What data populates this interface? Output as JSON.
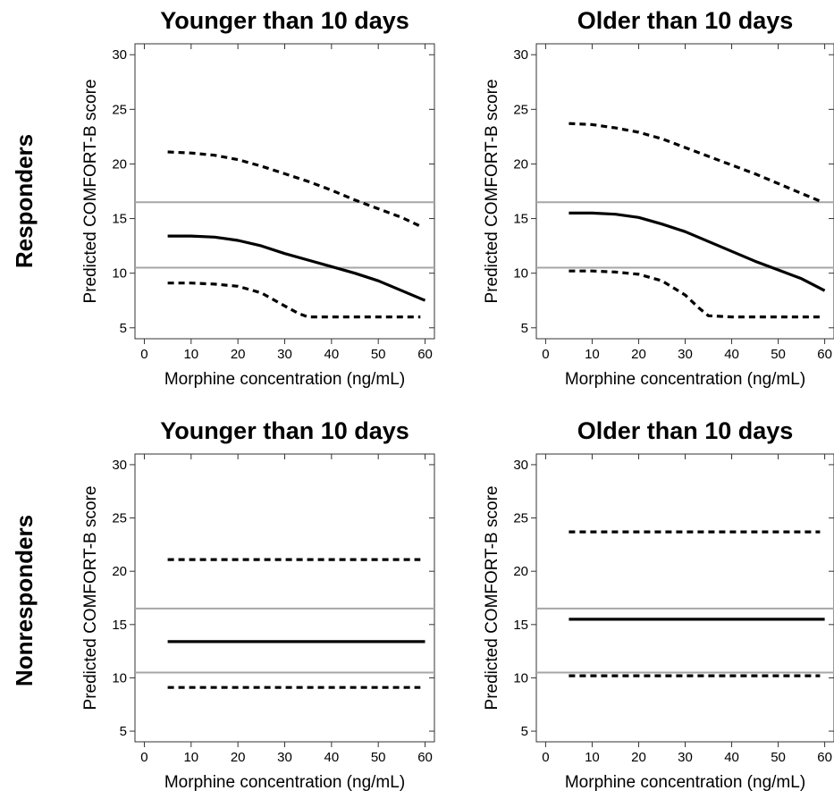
{
  "row_labels": [
    "Responders",
    "Nonresponders"
  ],
  "colors": {
    "curve": "#000000",
    "reference": "#a6a6a6",
    "frame": "#333333"
  },
  "chart_data": [
    {
      "type": "line",
      "title": "Younger than 10 days",
      "row": "Responders",
      "xlabel": "Morphine concentration (ng/mL)",
      "ylabel": "Predicted COMFORT-B score",
      "xlim": [
        -2,
        62
      ],
      "ylim": [
        4,
        31
      ],
      "xticks": [
        0,
        10,
        20,
        30,
        40,
        50,
        60
      ],
      "yticks": [
        5,
        10,
        15,
        20,
        25,
        30
      ],
      "reference_lines": [
        10.5,
        16.5
      ],
      "series": [
        {
          "role": "estimate",
          "style": "solid",
          "x": [
            5,
            10,
            15,
            20,
            25,
            30,
            35,
            40,
            45,
            50,
            55,
            60
          ],
          "y": [
            13.4,
            13.4,
            13.3,
            13.0,
            12.5,
            11.8,
            11.2,
            10.6,
            10.0,
            9.3,
            8.4,
            7.5
          ]
        },
        {
          "role": "upper",
          "style": "dashed",
          "x": [
            5,
            10,
            15,
            20,
            25,
            30,
            35,
            40,
            45,
            50,
            55,
            59
          ],
          "y": [
            21.1,
            21.0,
            20.8,
            20.4,
            19.8,
            19.1,
            18.4,
            17.6,
            16.7,
            15.9,
            15.1,
            14.3
          ]
        },
        {
          "role": "lower",
          "style": "dashed",
          "x": [
            5,
            10,
            15,
            20,
            25,
            30,
            33,
            35,
            40,
            45,
            50,
            55,
            59
          ],
          "y": [
            9.1,
            9.1,
            9.0,
            8.8,
            8.2,
            7.0,
            6.3,
            6.0,
            6.0,
            6.0,
            6.0,
            6.0,
            6.0
          ]
        }
      ]
    },
    {
      "type": "line",
      "title": "Older than 10 days",
      "row": "Responders",
      "xlabel": "Morphine concentration (ng/mL)",
      "ylabel": "Predicted COMFORT-B score",
      "xlim": [
        -2,
        62
      ],
      "ylim": [
        4,
        31
      ],
      "xticks": [
        0,
        10,
        20,
        30,
        40,
        50,
        60
      ],
      "yticks": [
        5,
        10,
        15,
        20,
        25,
        30
      ],
      "reference_lines": [
        10.5,
        16.5
      ],
      "series": [
        {
          "role": "estimate",
          "style": "solid",
          "x": [
            5,
            10,
            15,
            20,
            25,
            30,
            35,
            40,
            45,
            50,
            55,
            60
          ],
          "y": [
            15.5,
            15.5,
            15.4,
            15.1,
            14.5,
            13.8,
            12.9,
            12.0,
            11.1,
            10.3,
            9.5,
            8.4
          ]
        },
        {
          "role": "upper",
          "style": "dashed",
          "x": [
            5,
            10,
            15,
            20,
            25,
            30,
            35,
            40,
            45,
            50,
            55,
            59
          ],
          "y": [
            23.7,
            23.6,
            23.3,
            22.9,
            22.3,
            21.5,
            20.7,
            19.9,
            19.1,
            18.2,
            17.3,
            16.6
          ]
        },
        {
          "role": "lower",
          "style": "dashed",
          "x": [
            5,
            10,
            15,
            20,
            25,
            30,
            33,
            35,
            40,
            45,
            50,
            55,
            59
          ],
          "y": [
            10.2,
            10.2,
            10.1,
            9.9,
            9.3,
            8.0,
            6.8,
            6.1,
            6.0,
            6.0,
            6.0,
            6.0,
            6.0
          ]
        }
      ]
    },
    {
      "type": "line",
      "title": "Younger than 10 days",
      "row": "Nonresponders",
      "xlabel": "Morphine concentration (ng/mL)",
      "ylabel": "Predicted COMFORT-B score",
      "xlim": [
        -2,
        62
      ],
      "ylim": [
        4,
        31
      ],
      "xticks": [
        0,
        10,
        20,
        30,
        40,
        50,
        60
      ],
      "yticks": [
        5,
        10,
        15,
        20,
        25,
        30
      ],
      "reference_lines": [
        10.5,
        16.5
      ],
      "series": [
        {
          "role": "estimate",
          "style": "solid",
          "x": [
            5,
            60
          ],
          "y": [
            13.4,
            13.4
          ]
        },
        {
          "role": "upper",
          "style": "dashed",
          "x": [
            5,
            59
          ],
          "y": [
            21.1,
            21.1
          ]
        },
        {
          "role": "lower",
          "style": "dashed",
          "x": [
            5,
            59
          ],
          "y": [
            9.1,
            9.1
          ]
        }
      ]
    },
    {
      "type": "line",
      "title": "Older than 10 days",
      "row": "Nonresponders",
      "xlabel": "Morphine concentration (ng/mL)",
      "ylabel": "Predicted COMFORT-B score",
      "xlim": [
        -2,
        62
      ],
      "ylim": [
        4,
        31
      ],
      "xticks": [
        0,
        10,
        20,
        30,
        40,
        50,
        60
      ],
      "yticks": [
        5,
        10,
        15,
        20,
        25,
        30
      ],
      "reference_lines": [
        10.5,
        16.5
      ],
      "series": [
        {
          "role": "estimate",
          "style": "solid",
          "x": [
            5,
            60
          ],
          "y": [
            15.5,
            15.5
          ]
        },
        {
          "role": "upper",
          "style": "dashed",
          "x": [
            5,
            59
          ],
          "y": [
            23.7,
            23.7
          ]
        },
        {
          "role": "lower",
          "style": "dashed",
          "x": [
            5,
            59
          ],
          "y": [
            10.2,
            10.2
          ]
        }
      ]
    }
  ]
}
